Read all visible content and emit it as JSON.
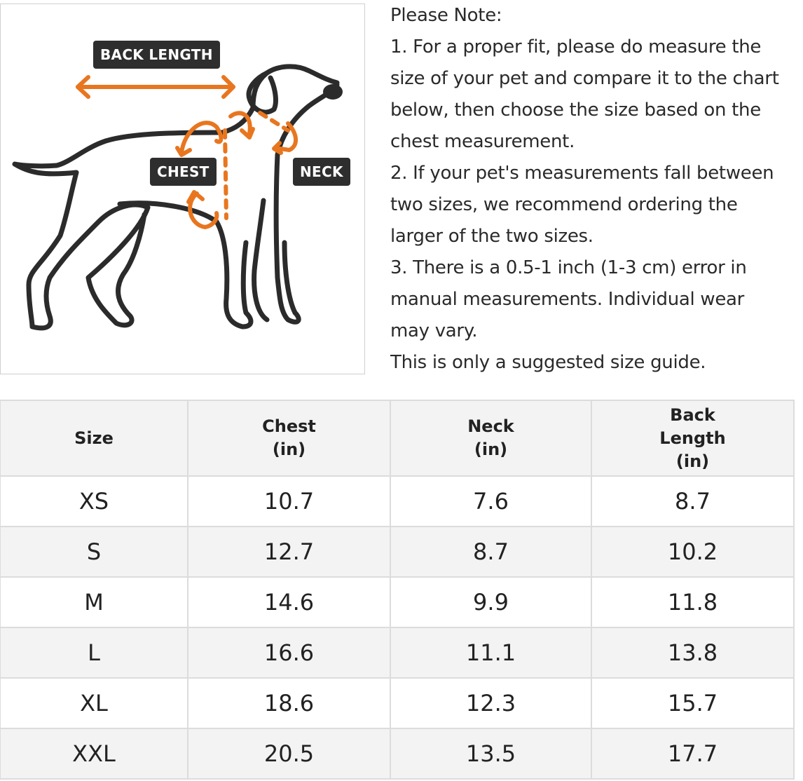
{
  "figure": {
    "labels": {
      "back_length": "BACK LENGTH",
      "chest": "CHEST",
      "neck": "NECK"
    },
    "colors": {
      "outline": "#2b2b2b",
      "accent": "#e8761f",
      "tag_bg": "#2e2e2e"
    }
  },
  "notes": {
    "lines": [
      "Please Note:",
      "1. For a proper fit, please do measure the",
      "size of your pet and compare it to the chart",
      "below, then choose the size based on the",
      "chest measurement.",
      "2. If your pet's measurements fall between",
      "two sizes, we recommend ordering the",
      "larger of the two sizes.",
      "3. There is a 0.5-1 inch (1-3 cm) error in",
      "manual measurements. Individual wear",
      "may vary.",
      "This is only a suggested size guide."
    ]
  },
  "table": {
    "headers": [
      [
        "Size"
      ],
      [
        "Chest",
        "(in)"
      ],
      [
        "Neck",
        "(in)"
      ],
      [
        "Back",
        "Length",
        "(in)"
      ]
    ],
    "rows": [
      [
        "XS",
        "10.7",
        "7.6",
        "8.7"
      ],
      [
        "S",
        "12.7",
        "8.7",
        "10.2"
      ],
      [
        "M",
        "14.6",
        "9.9",
        "11.8"
      ],
      [
        "L",
        "16.6",
        "11.1",
        "13.8"
      ],
      [
        "XL",
        "18.6",
        "12.3",
        "15.7"
      ],
      [
        "XXL",
        "20.5",
        "13.5",
        "17.7"
      ]
    ]
  }
}
